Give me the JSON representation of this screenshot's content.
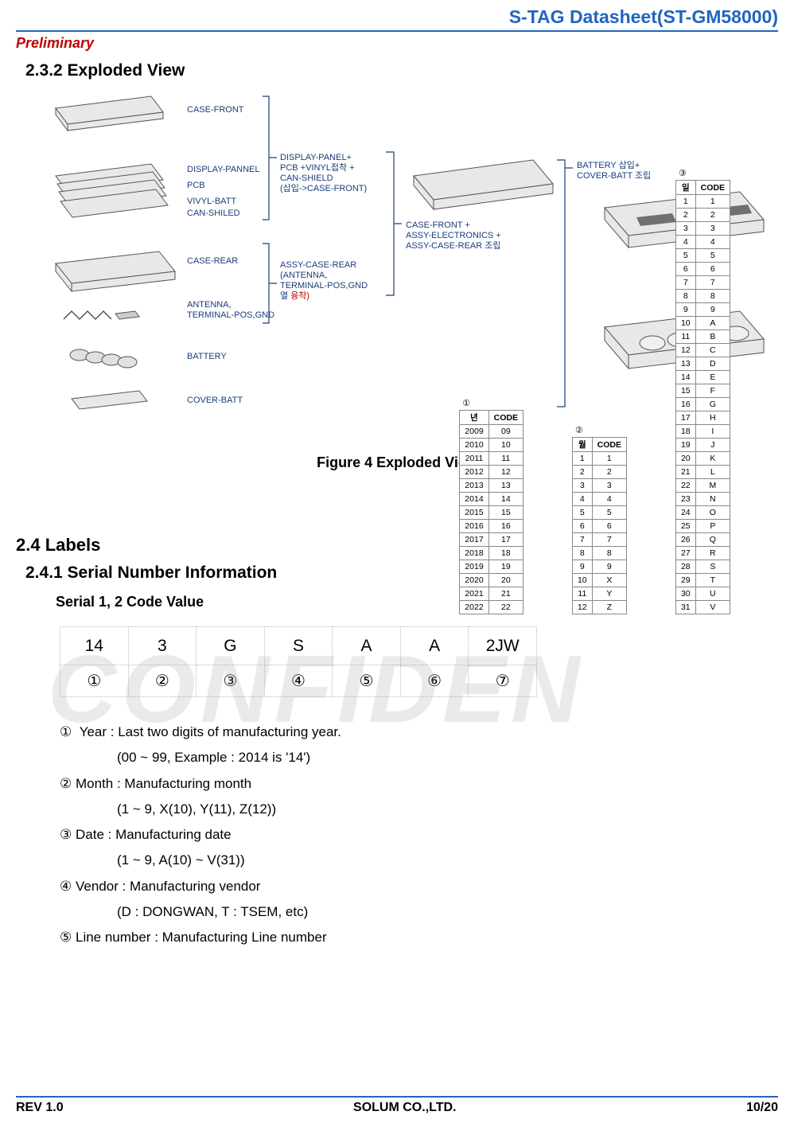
{
  "header": {
    "title": "S-TAG Datasheet(ST-GM58000)",
    "title_color": "#2065c0",
    "preliminary": "Preliminary",
    "preliminary_color": "#c00000"
  },
  "section_232": {
    "heading": "2.3.2 Exploded View",
    "figure_caption": "Figure 4 Exploded View",
    "parts": [
      {
        "label": "CASE-FRONT"
      },
      {
        "label": "DISPLAY-PANNEL"
      },
      {
        "label": "PCB"
      },
      {
        "label": "VIVYL-BATT"
      },
      {
        "label": "CAN-SHILED"
      },
      {
        "label": "CASE-REAR"
      },
      {
        "label": "ANTENNA,\nTERMINAL-POS,GND"
      },
      {
        "label": "BATTERY"
      },
      {
        "label": "COVER-BATT"
      }
    ],
    "assemblies": [
      {
        "label": "DISPLAY-PANEL+\nPCB +VINYL접착 +\nCAN-SHIELD\n(삽입->CASE-FRONT)"
      },
      {
        "label": "ASSY-CASE-REAR\n(ANTENNA,\nTERMINAL-POS,GND\n열 융착)"
      },
      {
        "label": "CASE-FRONT +\nASSY-ELECTRONICS +\nASSY-CASE-REAR 조립"
      },
      {
        "label": "BATTERY 삽입+\nCOVER-BATT 조립"
      }
    ]
  },
  "section_24": {
    "heading": "2.4 Labels"
  },
  "section_241": {
    "heading": "2.4.1 Serial Number Information",
    "subheading": "Serial 1, 2 Code Value",
    "serial_table": {
      "row1": [
        "14",
        "3",
        "G",
        "S",
        "A",
        "A",
        "2JW"
      ],
      "row2": [
        "①",
        "②",
        "③",
        "④",
        "⑤",
        "⑥",
        "⑦"
      ]
    },
    "definitions": [
      {
        "num": "①",
        "text": "Year : Last two digits of manufacturing year.",
        "sub": "(00 ~ 99, Example : 2014 is '14')"
      },
      {
        "num": "②",
        "text": "Month : Manufacturing month",
        "sub": "(1 ~ 9, X(10), Y(11), Z(12))"
      },
      {
        "num": "③",
        "text": "Date : Manufacturing date",
        "sub": "(1 ~ 9, A(10) ~ V(31))"
      },
      {
        "num": "④",
        "text": "Vendor : Manufacturing vendor",
        "sub": "(D : DONGWAN, T : TSEM, etc)"
      },
      {
        "num": "⑤",
        "text": "Line number : Manufacturing Line number",
        "sub": ""
      }
    ],
    "code_tables": {
      "year": {
        "marker": "①",
        "columns": [
          "년",
          "CODE"
        ],
        "rows": [
          [
            "2009",
            "09"
          ],
          [
            "2010",
            "10"
          ],
          [
            "2011",
            "11"
          ],
          [
            "2012",
            "12"
          ],
          [
            "2013",
            "13"
          ],
          [
            "2014",
            "14"
          ],
          [
            "2015",
            "15"
          ],
          [
            "2016",
            "16"
          ],
          [
            "2017",
            "17"
          ],
          [
            "2018",
            "18"
          ],
          [
            "2019",
            "19"
          ],
          [
            "2020",
            "20"
          ],
          [
            "2021",
            "21"
          ],
          [
            "2022",
            "22"
          ]
        ]
      },
      "month": {
        "marker": "②",
        "columns": [
          "월",
          "CODE"
        ],
        "rows": [
          [
            "1",
            "1"
          ],
          [
            "2",
            "2"
          ],
          [
            "3",
            "3"
          ],
          [
            "4",
            "4"
          ],
          [
            "5",
            "5"
          ],
          [
            "6",
            "6"
          ],
          [
            "7",
            "7"
          ],
          [
            "8",
            "8"
          ],
          [
            "9",
            "9"
          ],
          [
            "10",
            "X"
          ],
          [
            "11",
            "Y"
          ],
          [
            "12",
            "Z"
          ]
        ]
      },
      "date": {
        "marker": "③",
        "columns": [
          "일",
          "CODE"
        ],
        "rows": [
          [
            "1",
            "1"
          ],
          [
            "2",
            "2"
          ],
          [
            "3",
            "3"
          ],
          [
            "4",
            "4"
          ],
          [
            "5",
            "5"
          ],
          [
            "6",
            "6"
          ],
          [
            "7",
            "7"
          ],
          [
            "8",
            "8"
          ],
          [
            "9",
            "9"
          ],
          [
            "10",
            "A"
          ],
          [
            "11",
            "B"
          ],
          [
            "12",
            "C"
          ],
          [
            "13",
            "D"
          ],
          [
            "14",
            "E"
          ],
          [
            "15",
            "F"
          ],
          [
            "16",
            "G"
          ],
          [
            "17",
            "H"
          ],
          [
            "18",
            "I"
          ],
          [
            "19",
            "J"
          ],
          [
            "20",
            "K"
          ],
          [
            "21",
            "L"
          ],
          [
            "22",
            "M"
          ],
          [
            "23",
            "N"
          ],
          [
            "24",
            "O"
          ],
          [
            "25",
            "P"
          ],
          [
            "26",
            "Q"
          ],
          [
            "27",
            "R"
          ],
          [
            "28",
            "S"
          ],
          [
            "29",
            "T"
          ],
          [
            "30",
            "U"
          ],
          [
            "31",
            "V"
          ]
        ]
      }
    }
  },
  "footer": {
    "rev": "REV 1.0",
    "company": "SOLUM CO.,LTD.",
    "page": "10/20"
  },
  "colors": {
    "header_blue": "#2065c0",
    "label_blue": "#1a3d7a",
    "red": "#c00000",
    "border_gray": "#888888"
  }
}
